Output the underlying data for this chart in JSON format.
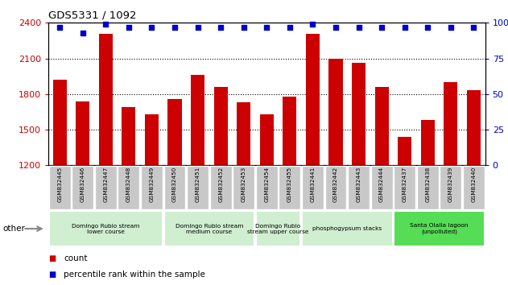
{
  "title": "GDS5331 / 1092",
  "samples": [
    "GSM832445",
    "GSM832446",
    "GSM832447",
    "GSM832448",
    "GSM832449",
    "GSM832450",
    "GSM832451",
    "GSM832452",
    "GSM832453",
    "GSM832454",
    "GSM832455",
    "GSM832441",
    "GSM832442",
    "GSM832443",
    "GSM832444",
    "GSM832437",
    "GSM832438",
    "GSM832439",
    "GSM832440"
  ],
  "counts": [
    1920,
    1740,
    2310,
    1690,
    1630,
    1760,
    1960,
    1860,
    1730,
    1630,
    1780,
    2310,
    2100,
    2060,
    1860,
    1440,
    1580,
    1900,
    1830
  ],
  "percentiles": [
    97,
    93,
    99,
    97,
    97,
    97,
    97,
    97,
    97,
    97,
    97,
    99,
    97,
    97,
    97,
    97,
    97,
    97,
    97
  ],
  "ylim_lo": 1200,
  "ylim_hi": 2400,
  "yticks": [
    1200,
    1500,
    1800,
    2100,
    2400
  ],
  "ytick_labels": [
    "1200",
    "1500",
    "1800",
    "2100",
    "2400"
  ],
  "y2lim_lo": 0,
  "y2lim_hi": 100,
  "y2ticks": [
    0,
    25,
    50,
    75,
    100
  ],
  "y2tick_labels": [
    "0",
    "25",
    "50",
    "75",
    "100%"
  ],
  "bar_color": "#cc0000",
  "dot_color": "#0000cc",
  "cell_bg": "#c8c8c8",
  "groups": [
    {
      "label": "Domingo Rubio stream\nlower course",
      "start": 0,
      "end": 4,
      "color": "#d0eed0"
    },
    {
      "label": "Domingo Rubio stream\nmedium course",
      "start": 5,
      "end": 8,
      "color": "#d0eed0"
    },
    {
      "label": "Domingo Rubio\nstream upper course",
      "start": 9,
      "end": 10,
      "color": "#d0eed0"
    },
    {
      "label": "phosphogypsum stacks",
      "start": 11,
      "end": 14,
      "color": "#d0eed0"
    },
    {
      "label": "Santa Olalla lagoon\n(unpolluted)",
      "start": 15,
      "end": 18,
      "color": "#55dd55"
    }
  ],
  "legend_count_label": "count",
  "legend_pct_label": "percentile rank within the sample",
  "other_label": "other"
}
